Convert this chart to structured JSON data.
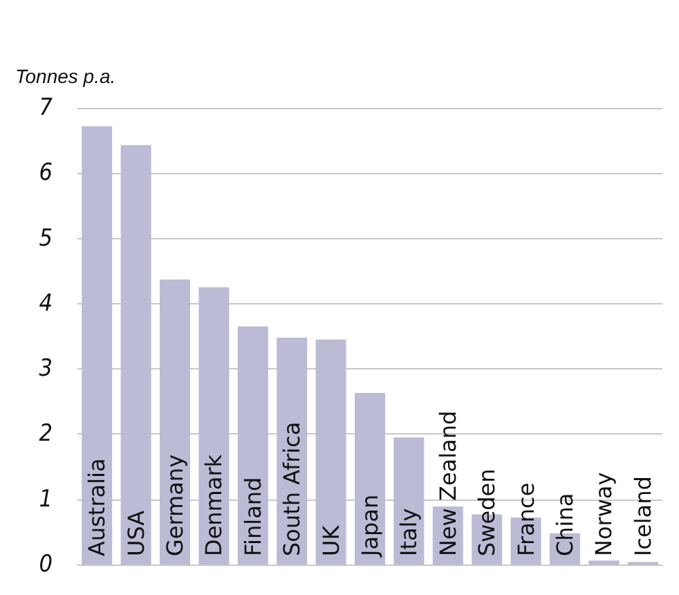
{
  "chart_data": {
    "type": "bar",
    "ylabel": "Tonnes p.a.",
    "categories": [
      "Australia",
      "USA",
      "Germany",
      "Denmark",
      "Finland",
      "South Africa",
      "UK",
      "Japan",
      "Italy",
      "New Zealand",
      "Sweden",
      "France",
      "China",
      "Norway",
      "Iceland"
    ],
    "values": [
      6.72,
      6.43,
      4.37,
      4.25,
      3.65,
      3.48,
      3.45,
      2.63,
      1.95,
      0.89,
      0.77,
      0.72,
      0.48,
      0.06,
      0.04
    ],
    "color": "#bbbbd6",
    "ylim": [
      0,
      7
    ],
    "yticks": [
      0,
      1,
      2,
      3,
      4,
      5,
      6,
      7
    ],
    "grid": "y"
  }
}
